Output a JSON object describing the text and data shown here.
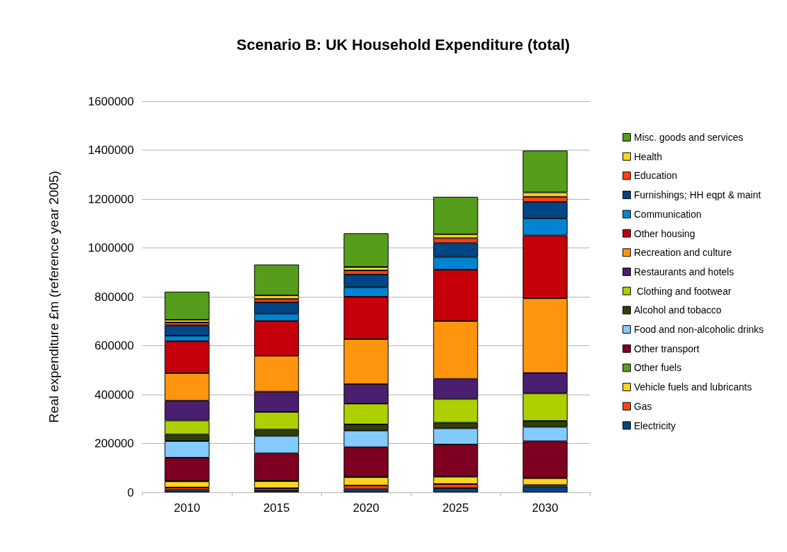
{
  "chart_data": {
    "type": "bar",
    "stacked": true,
    "title": "Scenario B: UK Household Expenditure (total)",
    "ylabel": "Real expenditure £m (reference year 2005)",
    "categories": [
      "2010",
      "2015",
      "2020",
      "2025",
      "2030"
    ],
    "ylim": [
      0,
      1600000
    ],
    "yticks": [
      0,
      200000,
      400000,
      600000,
      800000,
      1000000,
      1200000,
      1400000,
      1600000
    ],
    "grid": "y",
    "legend": "right",
    "series": [
      {
        "name": "Electricity",
        "color": "#004586",
        "values": [
          10000,
          8000,
          13000,
          17000,
          24000
        ]
      },
      {
        "name": "Gas",
        "color": "#ff420e",
        "values": [
          10000,
          9000,
          15000,
          17000,
          6000
        ]
      },
      {
        "name": "Vehicle fuels and lubricants",
        "color": "#ffd320",
        "values": [
          25000,
          29000,
          34000,
          30000,
          28000
        ]
      },
      {
        "name": "Other fuels",
        "color": "#579d1c",
        "values": [
          2000,
          2000,
          2000,
          2000,
          2000
        ]
      },
      {
        "name": "Other transport",
        "color": "#7e0021",
        "values": [
          95000,
          112000,
          121000,
          130000,
          149000
        ]
      },
      {
        "name": "Food and non-alcoholic drinks",
        "color": "#83caff",
        "values": [
          68000,
          71000,
          68000,
          66000,
          59000
        ]
      },
      {
        "name": "Alcohol and tobacco",
        "color": "#314004",
        "values": [
          27000,
          26000,
          25000,
          23000,
          24000
        ]
      },
      {
        "name": " Clothing and footwear",
        "color": "#aecf00",
        "values": [
          57000,
          72000,
          85000,
          97000,
          113000
        ]
      },
      {
        "name": "Restaurants and hotels",
        "color": "#4b1f6f",
        "values": [
          81000,
          83000,
          80000,
          82000,
          83000
        ]
      },
      {
        "name": "Recreation and culture",
        "color": "#ff950e",
        "values": [
          113000,
          147000,
          184000,
          237000,
          306000
        ]
      },
      {
        "name": "Other housing",
        "color": "#c5000b",
        "values": [
          130000,
          142000,
          173000,
          210000,
          257000
        ]
      },
      {
        "name": "Communication",
        "color": "#0084d1",
        "values": [
          23000,
          30000,
          39000,
          52000,
          70000
        ]
      },
      {
        "name": "Furnishings; HH eqpt & maint",
        "color": "#004586",
        "values": [
          42000,
          46000,
          52000,
          57000,
          67000
        ]
      },
      {
        "name": "Education",
        "color": "#ff420e",
        "values": [
          12000,
          14000,
          17000,
          20000,
          21000
        ]
      },
      {
        "name": "Health",
        "color": "#ffd320",
        "values": [
          11000,
          15000,
          14000,
          16000,
          18000
        ]
      },
      {
        "name": "Misc. goods and services",
        "color": "#579d1c",
        "values": [
          115000,
          126000,
          138000,
          153000,
          171000
        ]
      }
    ]
  }
}
